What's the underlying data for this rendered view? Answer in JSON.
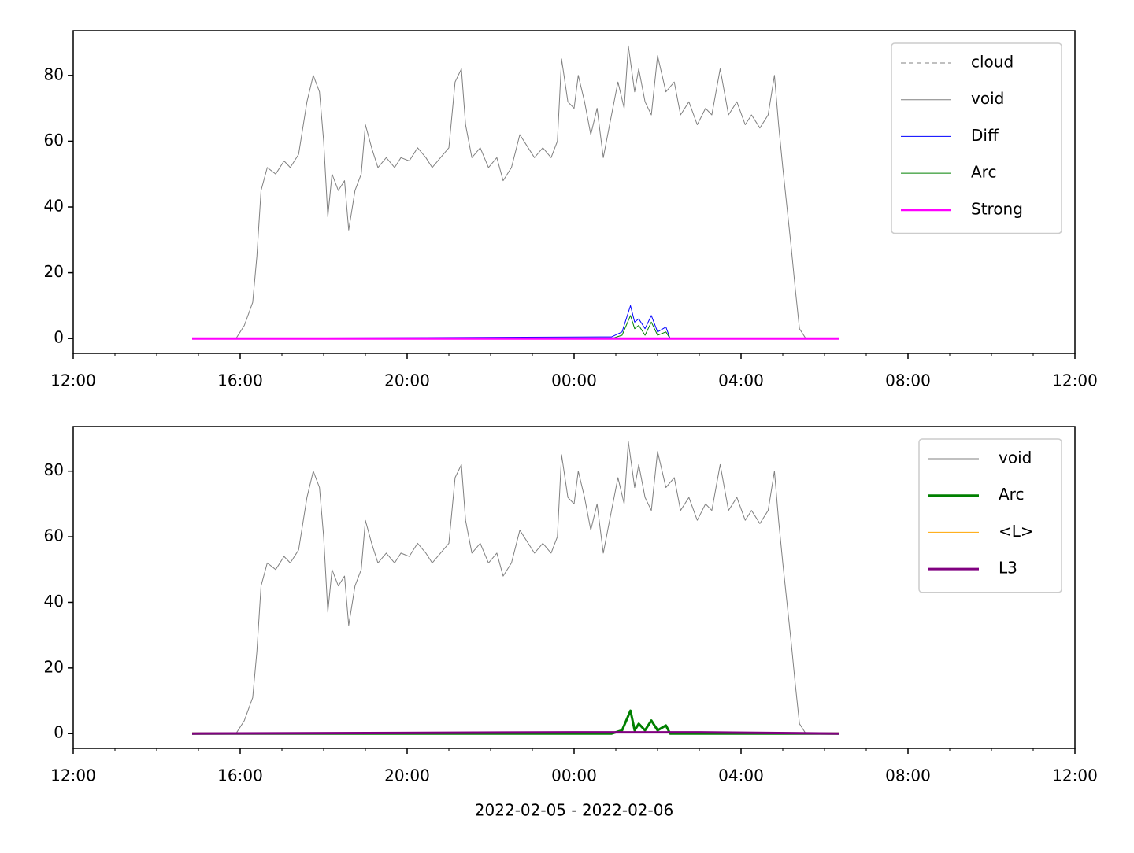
{
  "chart_data": [
    {
      "type": "line",
      "xlim": [
        12,
        36
      ],
      "ylim": [
        -4.5,
        93.6
      ],
      "xticks": [
        {
          "value": 12,
          "label": "12:00"
        },
        {
          "value": 16,
          "label": "16:00"
        },
        {
          "value": 20,
          "label": "20:00"
        },
        {
          "value": 24,
          "label": "00:00"
        },
        {
          "value": 28,
          "label": "04:00"
        },
        {
          "value": 32,
          "label": "08:00"
        },
        {
          "value": 36,
          "label": "12:00"
        }
      ],
      "xminorticks": [
        13,
        14,
        15,
        17,
        18,
        19,
        21,
        22,
        23,
        25,
        26,
        27,
        29,
        30,
        31,
        33,
        34,
        35
      ],
      "yticks": [
        0,
        20,
        40,
        60,
        80
      ],
      "legend": "upper right",
      "series": [
        {
          "name": "cloud",
          "color": "#808080",
          "linewidth": 1,
          "dash": true,
          "x": [
            14.85,
            30.35
          ],
          "values": [
            null,
            null
          ]
        },
        {
          "name": "void",
          "color": "#808080",
          "linewidth": 1,
          "x": [
            14.85,
            15.9,
            16.1,
            16.3,
            16.4,
            16.5,
            16.65,
            16.85,
            17.05,
            17.2,
            17.4,
            17.6,
            17.75,
            17.9,
            18.0,
            18.1,
            18.2,
            18.35,
            18.5,
            18.6,
            18.75,
            18.9,
            19.0,
            19.15,
            19.3,
            19.5,
            19.7,
            19.85,
            20.05,
            20.25,
            20.45,
            20.6,
            20.8,
            21.0,
            21.15,
            21.3,
            21.4,
            21.55,
            21.75,
            21.95,
            22.15,
            22.3,
            22.5,
            22.7,
            22.9,
            23.05,
            23.25,
            23.45,
            23.6,
            23.7,
            23.85,
            24.0,
            24.1,
            24.25,
            24.4,
            24.55,
            24.7,
            24.85,
            25.05,
            25.2,
            25.3,
            25.45,
            25.55,
            25.7,
            25.85,
            26.0,
            26.2,
            26.4,
            26.55,
            26.75,
            26.95,
            27.15,
            27.3,
            27.5,
            27.7,
            27.9,
            28.1,
            28.25,
            28.45,
            28.65,
            28.8,
            28.9,
            29.0,
            29.1,
            29.2,
            29.3,
            29.4,
            29.55,
            30.35
          ],
          "values": [
            0,
            0,
            4,
            11,
            25,
            45,
            52,
            50,
            54,
            52,
            56,
            72,
            80,
            75,
            60,
            37,
            50,
            45,
            48,
            33,
            45,
            50,
            65,
            58,
            52,
            55,
            52,
            55,
            54,
            58,
            55,
            52,
            55,
            58,
            78,
            82,
            65,
            55,
            58,
            52,
            55,
            48,
            52,
            62,
            58,
            55,
            58,
            55,
            60,
            85,
            72,
            70,
            80,
            72,
            62,
            70,
            55,
            65,
            78,
            70,
            89,
            75,
            82,
            72,
            68,
            86,
            75,
            78,
            68,
            72,
            65,
            70,
            68,
            82,
            68,
            72,
            65,
            68,
            64,
            68,
            80,
            65,
            52,
            40,
            28,
            15,
            3,
            0,
            0
          ]
        },
        {
          "name": "Diff",
          "color": "#0000ff",
          "linewidth": 1,
          "x": [
            14.85,
            24.9,
            25.15,
            25.35,
            25.45,
            25.55,
            25.7,
            25.85,
            26.0,
            26.2,
            26.3,
            30.35
          ],
          "values": [
            0,
            0.5,
            2,
            10,
            5,
            6,
            3,
            7,
            2,
            3.5,
            0,
            0
          ]
        },
        {
          "name": "Arc",
          "color": "#008000",
          "linewidth": 1,
          "x": [
            14.85,
            24.9,
            25.15,
            25.35,
            25.45,
            25.55,
            25.7,
            25.85,
            26.0,
            26.2,
            26.3,
            30.35
          ],
          "values": [
            0,
            0,
            1,
            7,
            3,
            4,
            1,
            5,
            1,
            2,
            0,
            0
          ]
        },
        {
          "name": "Strong",
          "color": "#ff00ff",
          "linewidth": 3,
          "x": [
            14.85,
            30.35
          ],
          "values": [
            0,
            0
          ]
        }
      ]
    },
    {
      "type": "line",
      "xlabel": "2022-02-05 - 2022-02-06",
      "xlim": [
        12,
        36
      ],
      "ylim": [
        -4.5,
        93.6
      ],
      "xticks": [
        {
          "value": 12,
          "label": "12:00"
        },
        {
          "value": 16,
          "label": "16:00"
        },
        {
          "value": 20,
          "label": "20:00"
        },
        {
          "value": 24,
          "label": "00:00"
        },
        {
          "value": 28,
          "label": "04:00"
        },
        {
          "value": 32,
          "label": "08:00"
        },
        {
          "value": 36,
          "label": "12:00"
        }
      ],
      "xminorticks": [
        13,
        14,
        15,
        17,
        18,
        19,
        21,
        22,
        23,
        25,
        26,
        27,
        29,
        30,
        31,
        33,
        34,
        35
      ],
      "yticks": [
        0,
        20,
        40,
        60,
        80
      ],
      "legend": "upper right",
      "series": [
        {
          "name": "void",
          "color": "#808080",
          "linewidth": 1,
          "x": [
            14.85,
            15.9,
            16.1,
            16.3,
            16.4,
            16.5,
            16.65,
            16.85,
            17.05,
            17.2,
            17.4,
            17.6,
            17.75,
            17.9,
            18.0,
            18.1,
            18.2,
            18.35,
            18.5,
            18.6,
            18.75,
            18.9,
            19.0,
            19.15,
            19.3,
            19.5,
            19.7,
            19.85,
            20.05,
            20.25,
            20.45,
            20.6,
            20.8,
            21.0,
            21.15,
            21.3,
            21.4,
            21.55,
            21.75,
            21.95,
            22.15,
            22.3,
            22.5,
            22.7,
            22.9,
            23.05,
            23.25,
            23.45,
            23.6,
            23.7,
            23.85,
            24.0,
            24.1,
            24.25,
            24.4,
            24.55,
            24.7,
            24.85,
            25.05,
            25.2,
            25.3,
            25.45,
            25.55,
            25.7,
            25.85,
            26.0,
            26.2,
            26.4,
            26.55,
            26.75,
            26.95,
            27.15,
            27.3,
            27.5,
            27.7,
            27.9,
            28.1,
            28.25,
            28.45,
            28.65,
            28.8,
            28.9,
            29.0,
            29.1,
            29.2,
            29.3,
            29.4,
            29.55,
            30.35
          ],
          "values": [
            0,
            0,
            4,
            11,
            25,
            45,
            52,
            50,
            54,
            52,
            56,
            72,
            80,
            75,
            60,
            37,
            50,
            45,
            48,
            33,
            45,
            50,
            65,
            58,
            52,
            55,
            52,
            55,
            54,
            58,
            55,
            52,
            55,
            58,
            78,
            82,
            65,
            55,
            58,
            52,
            55,
            48,
            52,
            62,
            58,
            55,
            58,
            55,
            60,
            85,
            72,
            70,
            80,
            72,
            62,
            70,
            55,
            65,
            78,
            70,
            89,
            75,
            82,
            72,
            68,
            86,
            75,
            78,
            68,
            72,
            65,
            70,
            68,
            82,
            68,
            72,
            65,
            68,
            64,
            68,
            80,
            65,
            52,
            40,
            28,
            15,
            3,
            0,
            0
          ]
        },
        {
          "name": "Arc",
          "color": "#008000",
          "linewidth": 3,
          "x": [
            14.85,
            24.9,
            25.15,
            25.35,
            25.45,
            25.55,
            25.7,
            25.85,
            26.0,
            26.2,
            26.3,
            30.35
          ],
          "values": [
            0,
            0,
            1,
            7,
            1,
            3,
            1,
            4,
            1,
            2.5,
            0,
            0
          ]
        },
        {
          "name": "<L>",
          "color": "#ffa500",
          "linewidth": 1,
          "x": [
            14.85,
            30.35
          ],
          "values": [
            0.2,
            0.2
          ]
        },
        {
          "name": "L3",
          "color": "#800080",
          "linewidth": 3,
          "x": [
            14.85,
            24.0,
            27.0,
            30.35
          ],
          "values": [
            0,
            0.4,
            0.4,
            0
          ]
        }
      ]
    }
  ]
}
